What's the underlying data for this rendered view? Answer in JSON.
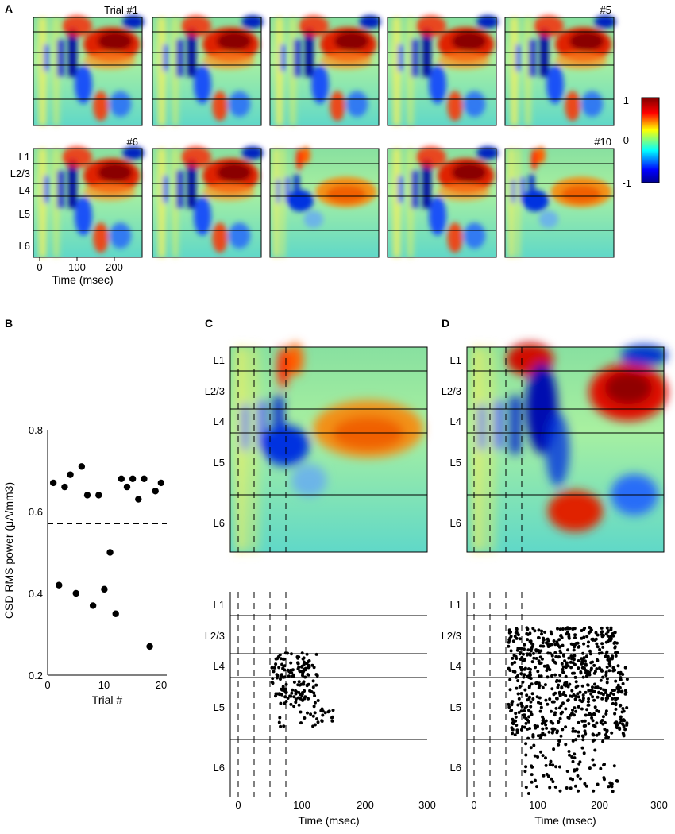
{
  "panel_labels": {
    "a": "A",
    "b": "B",
    "c": "C",
    "d": "D"
  },
  "panel_a": {
    "trial_labels": [
      "Trial #1",
      "#5",
      "#6",
      "#10"
    ],
    "layer_labels": [
      "L1",
      "L2/3",
      "L4",
      "L5",
      "L6"
    ],
    "x_ticks": [
      "0",
      "100",
      "200"
    ],
    "xlabel": "Time (msec)",
    "colorbar_ticks": [
      "1",
      "0",
      "-1"
    ],
    "colorbar_colors": [
      "#7f0000",
      "#ff0000",
      "#ffff00",
      "#00ffff",
      "#0000ff",
      "#00008f"
    ]
  },
  "panel_c": {
    "layer_labels": [
      "L1",
      "L2/3",
      "L4",
      "L5",
      "L6"
    ],
    "x_ticks": [
      "0",
      "100",
      "200",
      "300"
    ],
    "xlabel": "Time (msec)"
  },
  "panel_d": {
    "layer_labels": [
      "L1",
      "L2/3",
      "L4",
      "L5",
      "L6"
    ],
    "x_ticks": [
      "0",
      "100",
      "200",
      "300"
    ],
    "xlabel": "Time (msec)"
  },
  "chart_data": {
    "type": "scatter",
    "title": "",
    "xlabel": "Trial #",
    "ylabel": "CSD RMS power (μA/mm3)",
    "xlim": [
      0,
      21
    ],
    "ylim": [
      0.2,
      0.8
    ],
    "x_ticks": [
      "0",
      "10",
      "20"
    ],
    "y_ticks": [
      "0.2",
      "0.4",
      "0.6",
      "0.8"
    ],
    "threshold": 0.57,
    "x": [
      1,
      2,
      3,
      4,
      5,
      6,
      7,
      8,
      9,
      10,
      11,
      12,
      13,
      14,
      15,
      16,
      17,
      18,
      19,
      20
    ],
    "y": [
      0.67,
      0.42,
      0.66,
      0.69,
      0.4,
      0.71,
      0.64,
      0.37,
      0.64,
      0.41,
      0.5,
      0.35,
      0.68,
      0.66,
      0.68,
      0.63,
      0.68,
      0.27,
      0.65,
      0.67
    ]
  }
}
